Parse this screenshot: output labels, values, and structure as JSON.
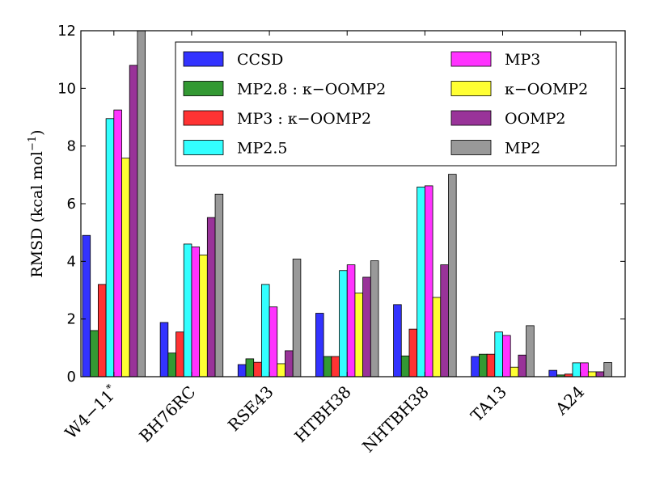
{
  "chart_data": {
    "type": "bar",
    "title": "",
    "xlabel": "",
    "ylabel": "RMSD (kcal mol",
    "ylabel_sup": "−1",
    "ylabel_close": ")",
    "ylim": [
      0,
      12
    ],
    "yticks": [
      0,
      2,
      4,
      6,
      8,
      10,
      12
    ],
    "grid": false,
    "legend_position": "top-right",
    "categories": [
      "W4−11*",
      "BH76RC",
      "RSE43",
      "HTBH38",
      "NHTBH38",
      "TA13",
      "A24"
    ],
    "series": [
      {
        "name": "CCSD",
        "color": "#3333ff",
        "values": [
          4.9,
          1.88,
          0.42,
          2.2,
          2.5,
          0.7,
          0.22
        ]
      },
      {
        "name": "MP2.8 : κ−OOMP2",
        "color": "#339933",
        "values": [
          1.6,
          0.82,
          0.62,
          0.7,
          0.72,
          0.78,
          0.06
        ]
      },
      {
        "name": "MP3 : κ−OOMP2",
        "color": "#ff3333",
        "values": [
          3.2,
          1.55,
          0.5,
          0.7,
          1.65,
          0.78,
          0.09
        ]
      },
      {
        "name": "MP2.5",
        "color": "#33ffff",
        "values": [
          8.95,
          4.6,
          3.2,
          3.68,
          6.58,
          1.55,
          0.48
        ]
      },
      {
        "name": "MP3",
        "color": "#ff33ff",
        "values": [
          9.25,
          4.5,
          2.42,
          3.88,
          6.62,
          1.43,
          0.48
        ]
      },
      {
        "name": "κ−OOMP2",
        "color": "#ffff33",
        "values": [
          7.58,
          4.22,
          0.45,
          2.9,
          2.75,
          0.33,
          0.17
        ]
      },
      {
        "name": "OOMP2",
        "color": "#993399",
        "values": [
          10.8,
          5.52,
          0.9,
          3.45,
          3.88,
          0.75,
          0.17
        ]
      },
      {
        "name": "MP2",
        "color": "#999999",
        "values": [
          12.6,
          6.33,
          4.08,
          4.02,
          7.02,
          1.77,
          0.49
        ]
      }
    ]
  }
}
